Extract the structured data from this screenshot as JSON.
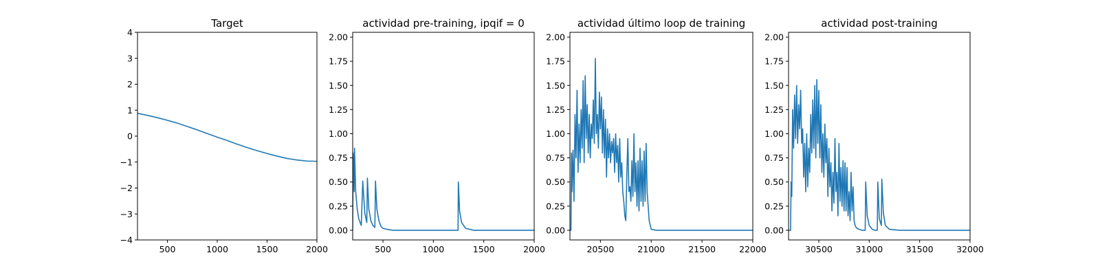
{
  "chart_data": [
    {
      "type": "line",
      "title": "Target",
      "xlabel": "",
      "ylabel": "",
      "xlim": [
        200,
        2000
      ],
      "ylim": [
        -4,
        4
      ],
      "xticks": [
        500,
        1000,
        1500,
        2000
      ],
      "yticks": [
        -4,
        -3,
        -2,
        -1,
        0,
        1,
        2,
        3,
        4
      ],
      "ytick_labels": [
        "−4",
        "−3",
        "−2",
        "−1",
        "0",
        "1",
        "2",
        "3",
        "4"
      ],
      "series": [
        {
          "color": "#1f77b4",
          "x": [
            200,
            300,
            400,
            500,
            600,
            700,
            800,
            900,
            1000,
            1100,
            1200,
            1300,
            1400,
            1500,
            1600,
            1700,
            1800,
            1900,
            2000
          ],
          "y": [
            0.88,
            0.8,
            0.71,
            0.61,
            0.5,
            0.37,
            0.24,
            0.1,
            -0.04,
            -0.17,
            -0.31,
            -0.44,
            -0.56,
            -0.67,
            -0.77,
            -0.86,
            -0.92,
            -0.96,
            -0.97
          ]
        }
      ]
    },
    {
      "type": "line",
      "title": "actividad pre-training, ipqif = 0",
      "xlabel": "",
      "ylabel": "",
      "xlim": [
        200,
        2000
      ],
      "ylim": [
        -0.1,
        2.05
      ],
      "xticks": [
        500,
        1000,
        1500,
        2000
      ],
      "yticks": [
        0,
        0.25,
        0.5,
        0.75,
        1.0,
        1.25,
        1.5,
        1.75,
        2.0
      ],
      "ytick_labels": [
        "0.00",
        "0.25",
        "0.50",
        "0.75",
        "1.00",
        "1.25",
        "1.50",
        "1.75",
        "2.00"
      ],
      "series": [
        {
          "color": "#1f77b4",
          "x": [
            200,
            205,
            215,
            218,
            230,
            245,
            260,
            285,
            300,
            320,
            340,
            346,
            360,
            380,
            400,
            420,
            426,
            440,
            460,
            480,
            500,
            540,
            600,
            800,
            1000,
            1200,
            1245,
            1248,
            1260,
            1280,
            1320,
            1400,
            1600,
            1800,
            2000
          ],
          "y": [
            0.0,
            0.8,
            0.4,
            0.85,
            0.4,
            0.22,
            0.12,
            0.05,
            0.51,
            0.18,
            0.08,
            0.54,
            0.22,
            0.1,
            0.05,
            0.03,
            0.51,
            0.22,
            0.1,
            0.04,
            0.02,
            0.01,
            0.0,
            0.0,
            0.0,
            0.0,
            0.0,
            0.5,
            0.2,
            0.08,
            0.02,
            0.0,
            0.0,
            0.0,
            0.0
          ]
        }
      ]
    },
    {
      "type": "line",
      "title": "actividad último loop de training",
      "xlabel": "",
      "ylabel": "",
      "xlim": [
        20200,
        22000
      ],
      "ylim": [
        -0.1,
        2.05
      ],
      "xticks": [
        20500,
        21000,
        21500,
        22000
      ],
      "yticks": [
        0,
        0.25,
        0.5,
        0.75,
        1.0,
        1.25,
        1.5,
        1.75,
        2.0
      ],
      "ytick_labels": [
        "0.00",
        "0.25",
        "0.50",
        "0.75",
        "1.00",
        "1.25",
        "1.50",
        "1.75",
        "2.00"
      ],
      "series": [
        {
          "color": "#1f77b4",
          "x": [
            20200,
            20210,
            20215,
            20220,
            20230,
            20240,
            20250,
            20260,
            20270,
            20280,
            20290,
            20300,
            20310,
            20320,
            20330,
            20340,
            20350,
            20360,
            20370,
            20380,
            20390,
            20400,
            20410,
            20420,
            20430,
            20440,
            20450,
            20460,
            20470,
            20480,
            20490,
            20500,
            20510,
            20520,
            20530,
            20540,
            20550,
            20560,
            20570,
            20580,
            20590,
            20600,
            20610,
            20620,
            20630,
            20640,
            20650,
            20660,
            20670,
            20680,
            20690,
            20700,
            20710,
            20720,
            20730,
            20740,
            20750,
            20760,
            20770,
            20780,
            20790,
            20800,
            20810,
            20820,
            20830,
            20840,
            20850,
            20860,
            20870,
            20880,
            20890,
            20900,
            20910,
            20920,
            20930,
            20940,
            20950,
            20960,
            20980,
            21000,
            21050,
            21100,
            21500,
            22000
          ],
          "y": [
            0.0,
            0.0,
            0.8,
            0.4,
            0.83,
            0.3,
            1.2,
            0.75,
            1.45,
            0.6,
            1.1,
            0.7,
            1.25,
            0.85,
            1.55,
            0.7,
            1.6,
            0.95,
            1.3,
            0.8,
            1.2,
            0.75,
            1.1,
            0.95,
            1.35,
            0.9,
            1.78,
            1.0,
            1.2,
            0.85,
            1.43,
            1.05,
            1.38,
            0.8,
            1.25,
            0.75,
            1.15,
            0.55,
            1.05,
            0.75,
            1.0,
            0.7,
            0.92,
            0.8,
            0.95,
            0.6,
            1.0,
            0.7,
            0.88,
            0.5,
            0.95,
            0.55,
            0.7,
            0.4,
            0.3,
            0.15,
            0.1,
            0.58,
            0.95,
            0.4,
            0.45,
            0.3,
            0.72,
            0.35,
            1.0,
            0.4,
            0.7,
            0.25,
            0.72,
            0.2,
            0.85,
            0.3,
            0.72,
            0.25,
            0.82,
            0.3,
            0.9,
            0.4,
            0.1,
            0.01,
            0.0,
            0.0,
            0.0,
            0.0
          ]
        }
      ]
    },
    {
      "type": "line",
      "title": "actividad post-training",
      "xlabel": "",
      "ylabel": "",
      "xlim": [
        30200,
        32000
      ],
      "ylim": [
        -0.1,
        2.05
      ],
      "xticks": [
        30500,
        31000,
        31500,
        32000
      ],
      "yticks": [
        0,
        0.25,
        0.5,
        0.75,
        1.0,
        1.25,
        1.5,
        1.75,
        2.0
      ],
      "ytick_labels": [
        "0.00",
        "0.25",
        "0.50",
        "0.75",
        "1.00",
        "1.25",
        "1.50",
        "1.75",
        "2.00"
      ],
      "series": [
        {
          "color": "#1f77b4",
          "x": [
            30200,
            30210,
            30220,
            30225,
            30232,
            30240,
            30250,
            30260,
            30270,
            30280,
            30290,
            30300,
            30310,
            30320,
            30330,
            30340,
            30350,
            30360,
            30370,
            30380,
            30390,
            30400,
            30410,
            30420,
            30430,
            30440,
            30450,
            30460,
            30470,
            30480,
            30490,
            30500,
            30510,
            30520,
            30530,
            30540,
            30550,
            30560,
            30570,
            30580,
            30590,
            30600,
            30610,
            30620,
            30630,
            30640,
            30650,
            30660,
            30670,
            30680,
            30690,
            30700,
            30710,
            30720,
            30730,
            30740,
            30750,
            30760,
            30770,
            30780,
            30790,
            30800,
            30810,
            30820,
            30830,
            30840,
            30850,
            30860,
            30870,
            30880,
            30900,
            30930,
            30960,
            30965,
            30980,
            31000,
            31030,
            31060,
            31080,
            31085,
            31100,
            31120,
            31125,
            31140,
            31160,
            31200,
            31300,
            31500,
            32000
          ],
          "y": [
            0.0,
            0.0,
            0.0,
            0.5,
            0.35,
            1.25,
            0.85,
            1.4,
            0.95,
            1.5,
            0.9,
            1.3,
            1.05,
            1.45,
            0.9,
            1.05,
            0.55,
            0.9,
            0.4,
            1.0,
            0.45,
            0.85,
            0.6,
            1.2,
            0.8,
            1.35,
            0.85,
            1.5,
            0.75,
            1.56,
            0.9,
            1.45,
            0.75,
            1.3,
            0.6,
            1.0,
            0.55,
            1.1,
            0.7,
            0.95,
            0.35,
            0.85,
            0.45,
            0.7,
            0.2,
            0.6,
            0.28,
            0.95,
            0.4,
            0.6,
            0.15,
            0.9,
            0.3,
            0.65,
            0.25,
            0.72,
            0.2,
            0.7,
            0.2,
            0.65,
            0.15,
            0.4,
            0.1,
            0.6,
            0.2,
            0.45,
            0.1,
            0.05,
            0.03,
            0.02,
            0.01,
            0.0,
            0.0,
            0.5,
            0.15,
            0.05,
            0.01,
            0.0,
            0.0,
            0.5,
            0.12,
            0.05,
            0.53,
            0.18,
            0.05,
            0.01,
            0.0,
            0.0,
            0.0
          ]
        }
      ]
    }
  ]
}
